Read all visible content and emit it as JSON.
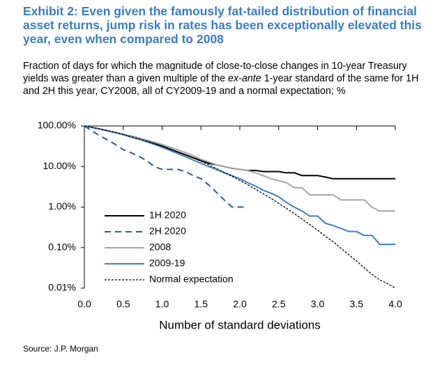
{
  "chart_data": {
    "type": "line",
    "title": "Exhibit 2: Even given the famously fat-tailed distribution of financial asset returns, jump risk in rates has been exceptionally elevated this year, even when compared to 2008",
    "subtitle": [
      "Fraction of days for which the magnitude of close-to-close changes in 10-year Treasury yields was greater than a given multiple of the ",
      "ex-ante",
      " 1-year standard of the same for 1H and 2H this year, CY2008, all of CY2009-19 and a normal expectation; %"
    ],
    "x_label": "Number of standard deviations",
    "source": "Source: J.P.  Morgan",
    "log_y": true,
    "legend": "lower left",
    "xlim": [
      0,
      4
    ],
    "ylim": [
      0.01,
      100
    ],
    "xticks": [
      {
        "value": 0,
        "label": "0.0"
      },
      0.5,
      {
        "value": 1,
        "label": "1.0"
      },
      1.5,
      {
        "value": 2,
        "label": "2.0"
      },
      2.5,
      {
        "value": 3,
        "label": "3.0"
      },
      3.5,
      {
        "value": 4,
        "label": "4.0"
      }
    ],
    "yticks": [
      {
        "value": 100,
        "label": "100.00%"
      },
      {
        "value": 10,
        "label": "10.00%"
      },
      {
        "value": 1,
        "label": "1.00%"
      },
      {
        "value": 0.1,
        "label": "0.10%"
      },
      {
        "value": 0.01,
        "label": "0.01%"
      }
    ],
    "x": [
      0,
      0.1,
      0.2,
      0.3,
      0.4,
      0.5,
      0.6,
      0.7,
      0.8,
      0.9,
      1.0,
      1.1,
      1.2,
      1.3,
      1.4,
      1.5,
      1.6,
      1.7,
      1.8,
      1.9,
      2.0,
      2.1,
      2.2,
      2.3,
      2.4,
      2.5,
      2.6,
      2.7,
      2.8,
      2.9,
      3.0,
      3.1,
      3.2,
      3.3,
      3.4,
      3.5,
      3.6,
      3.7,
      3.8,
      3.9,
      4.0
    ],
    "series": [
      {
        "name": "1H 2020",
        "color": "#000000",
        "style": "solid",
        "values": [
          100,
          92,
          84,
          76,
          69,
          62,
          55,
          49,
          43,
          37,
          32,
          27,
          23,
          19.5,
          16.5,
          14,
          12,
          11,
          10,
          9,
          8.5,
          8,
          8,
          7.5,
          7.5,
          7.5,
          7,
          7,
          6,
          6,
          6,
          5.5,
          5,
          5,
          5,
          5,
          5,
          5,
          5,
          5,
          5
        ]
      },
      {
        "name": "2H 2020",
        "color": "#2e5d8e",
        "style": "dashed",
        "values": [
          100,
          75,
          57,
          45,
          35,
          26,
          22,
          18,
          14,
          10,
          8.5,
          8.5,
          8.5,
          7.5,
          6,
          5,
          3.5,
          2.3,
          1.5,
          1,
          1,
          1,
          null,
          null,
          null,
          null,
          null,
          null,
          null,
          null,
          null,
          null,
          null,
          null,
          null,
          null,
          null,
          null,
          null,
          null,
          null
        ]
      },
      {
        "name": "2008",
        "color": "#a6a6a6",
        "style": "solid",
        "values": [
          100,
          92,
          84,
          77,
          70,
          63,
          57,
          51,
          45,
          40,
          35,
          30,
          26,
          22,
          18.5,
          15,
          13,
          11,
          10,
          9,
          8.5,
          8,
          7,
          6,
          5,
          4.5,
          4,
          3,
          3,
          2,
          2,
          2,
          2,
          1.5,
          1.5,
          1.5,
          1.5,
          1,
          0.8,
          0.8,
          0.8
        ]
      },
      {
        "name": "2009-19",
        "color": "#3b7fc4",
        "style": "solid",
        "values": [
          100,
          92,
          84,
          76,
          68,
          61,
          53,
          47,
          41,
          35,
          30,
          25,
          21,
          17.5,
          14.5,
          12,
          10,
          8.5,
          7,
          6,
          5,
          4,
          3.3,
          2.6,
          2.2,
          1.8,
          1.3,
          1,
          0.8,
          0.6,
          0.6,
          0.4,
          0.35,
          0.3,
          0.25,
          0.25,
          0.2,
          0.2,
          0.12,
          0.12,
          0.12
        ]
      },
      {
        "name": "Normal expectation",
        "color": "#000000",
        "style": "dotted",
        "values": [
          100,
          92,
          84.1,
          76.4,
          68.9,
          61.7,
          54.9,
          48.4,
          42.4,
          36.8,
          31.7,
          27.1,
          23,
          19.4,
          16.2,
          13.4,
          11,
          8.9,
          7.2,
          5.7,
          4.55,
          3.57,
          2.78,
          2.14,
          1.64,
          1.24,
          0.93,
          0.69,
          0.51,
          0.37,
          0.27,
          0.19,
          0.14,
          0.097,
          0.067,
          0.047,
          0.032,
          0.022,
          0.016,
          0.013,
          0.01
        ]
      }
    ]
  }
}
